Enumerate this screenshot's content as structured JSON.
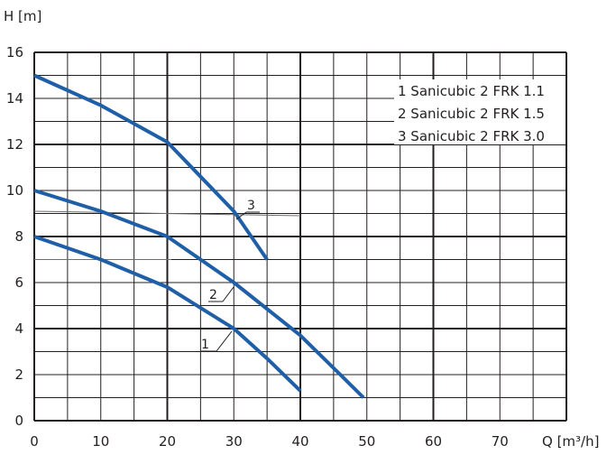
{
  "chart_data": {
    "type": "line",
    "title": "",
    "ylabel": "H [m]",
    "xlabel": "Q [m³/h]",
    "xlim": [
      0,
      80
    ],
    "ylim": [
      0,
      16
    ],
    "xticks": [
      0,
      10,
      20,
      30,
      40,
      50,
      60,
      70
    ],
    "yticks": [
      0,
      2,
      4,
      6,
      8,
      10,
      12,
      14,
      16
    ],
    "x_minor_step": 5,
    "y_minor_step": 1,
    "grid": true,
    "legend_position": "top-right",
    "legend": [
      "1 Sanicubic 2 FRK 1.1",
      "2 Sanicubic 2 FRK 1.5",
      "3 Sanicubic 2 FRK 3.0"
    ],
    "line_color": "#1f5fa8",
    "series": [
      {
        "label": "1",
        "points": [
          [
            0,
            8.0
          ],
          [
            10,
            7.0
          ],
          [
            20,
            5.8
          ],
          [
            25,
            4.9
          ],
          [
            30,
            4.0
          ],
          [
            35,
            2.7
          ],
          [
            40,
            1.3
          ]
        ]
      },
      {
        "label": "2",
        "points": [
          [
            0,
            10.0
          ],
          [
            10,
            9.1
          ],
          [
            20,
            8.0
          ],
          [
            25,
            7.0
          ],
          [
            30,
            6.0
          ],
          [
            40,
            3.7
          ],
          [
            46,
            2.0
          ],
          [
            49.5,
            1.0
          ]
        ]
      },
      {
        "label": "3",
        "points": [
          [
            0,
            15.0
          ],
          [
            10,
            13.7
          ],
          [
            20,
            12.1
          ],
          [
            25,
            10.6
          ],
          [
            30,
            9.1
          ],
          [
            35,
            7.0
          ]
        ]
      }
    ]
  }
}
